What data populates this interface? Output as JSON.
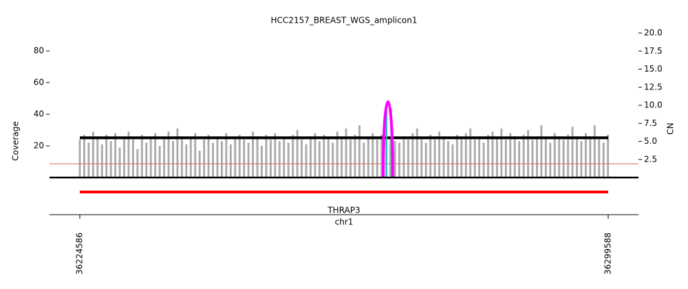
{
  "chart_data": {
    "type": "coverage",
    "title": "HCC2157_BREAST_WGS_amplicon1",
    "ylabel": "Coverage",
    "y2label": "CN",
    "xlabel": "chr1",
    "xlim": [
      36220289,
      36303885
    ],
    "xticks": [
      36224586,
      36299588
    ],
    "ylim": [
      0,
      91.3
    ],
    "yticks": [
      20,
      40,
      60,
      80
    ],
    "y2lim": [
      0,
      20
    ],
    "y2ticks": [
      2.5,
      {
        "value": 5,
        "label": "5.0"
      },
      7.5,
      {
        "value": 10,
        "label": "10.0"
      },
      12.5,
      {
        "value": 15,
        "label": "15.0"
      },
      17.5,
      {
        "value": 20,
        "label": "20.0"
      }
    ],
    "coverage": {
      "color": "#aaaaaa",
      "x": [
        36224586,
        36225216,
        36225846,
        36226476,
        36227106,
        36227736,
        36228366,
        36228996,
        36229626,
        36230256,
        36230886,
        36231516,
        36232146,
        36232776,
        36233406,
        36234036,
        36234666,
        36235296,
        36235926,
        36236556,
        36237186,
        36237816,
        36238446,
        36239076,
        36239706,
        36240336,
        36240966,
        36241596,
        36242226,
        36242856,
        36243486,
        36244116,
        36244746,
        36245376,
        36246006,
        36246636,
        36247266,
        36247896,
        36248526,
        36249156,
        36249786,
        36250416,
        36251046,
        36251676,
        36252306,
        36252936,
        36253566,
        36254196,
        36254826,
        36255456,
        36256086,
        36256716,
        36257346,
        36257976,
        36258606,
        36259236,
        36259866,
        36260496,
        36261126,
        36261756,
        36262386,
        36263016,
        36263646,
        36264276,
        36264906,
        36265536,
        36266166,
        36266796,
        36267426,
        36268056,
        36268686,
        36269316,
        36269946,
        36270576,
        36271206,
        36271836,
        36272466,
        36273096,
        36273726,
        36274356,
        36274986,
        36275616,
        36276246,
        36276876,
        36277506,
        36278136,
        36278766,
        36279396,
        36280026,
        36280656,
        36281286,
        36281916,
        36282546,
        36283176,
        36283806,
        36284436,
        36285066,
        36285696,
        36286326,
        36286956,
        36287586,
        36288216,
        36288846,
        36289476,
        36290106,
        36290736,
        36291366,
        36291996,
        36292626,
        36293256,
        36293886,
        36294516,
        36295146,
        36295776,
        36296406,
        36297036,
        36297666,
        36298296,
        36298926,
        36299556
      ],
      "values": [
        24,
        27,
        22,
        29,
        25,
        21,
        27,
        23,
        28,
        19,
        26,
        29,
        24,
        18,
        27,
        22,
        25,
        28,
        20,
        26,
        29,
        23,
        31,
        26,
        21,
        25,
        28,
        17,
        24,
        27,
        22,
        26,
        23,
        28,
        21,
        25,
        27,
        24,
        22,
        29,
        26,
        20,
        27,
        24,
        28,
        23,
        25,
        22,
        27,
        30,
        24,
        21,
        26,
        28,
        23,
        27,
        25,
        22,
        29,
        26,
        31,
        24,
        27,
        33,
        22,
        26,
        28,
        24,
        27,
        43,
        25,
        23,
        22,
        26,
        24,
        28,
        31,
        25,
        22,
        27,
        24,
        29,
        26,
        23,
        21,
        27,
        25,
        28,
        31,
        24,
        26,
        22,
        27,
        29,
        25,
        31,
        24,
        28,
        26,
        23,
        27,
        30,
        24,
        26,
        33,
        25,
        22,
        28,
        26,
        24,
        27,
        32,
        25,
        23,
        28,
        26,
        33,
        24,
        22,
        27
      ]
    },
    "segments": [
      {
        "start": 36224586,
        "end": 36299588,
        "cn": 5.5,
        "color": "#000000"
      }
    ],
    "threshold_cn": 1.9,
    "threshold_color": "#e06060",
    "breakpoint": {
      "start": 36267650,
      "end": 36269000,
      "cn": 10.5,
      "color": "#ff00ff",
      "edge_color": "#20c0c0"
    },
    "gene": {
      "name": "THRAP3",
      "start": 36224586,
      "end": 36299588,
      "color": "#ff0000"
    }
  }
}
